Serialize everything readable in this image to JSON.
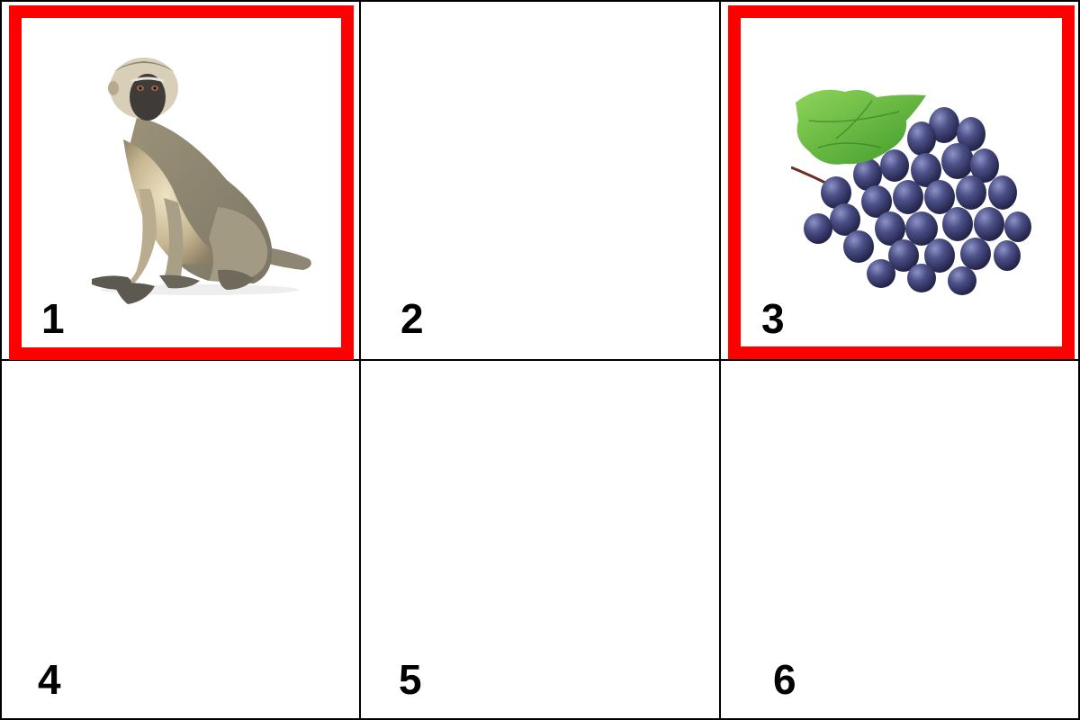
{
  "board": {
    "cells": [
      {
        "number": "1",
        "revealed": true,
        "picture": "monkey-icon"
      },
      {
        "number": "2",
        "revealed": false,
        "picture": ""
      },
      {
        "number": "3",
        "revealed": true,
        "picture": "grapes-icon"
      },
      {
        "number": "4",
        "revealed": false,
        "picture": ""
      },
      {
        "number": "5",
        "revealed": false,
        "picture": ""
      },
      {
        "number": "6",
        "revealed": false,
        "picture": ""
      }
    ]
  },
  "colors": {
    "highlight": "#ff0000",
    "grid": "#000000",
    "background": "#ffffff"
  }
}
